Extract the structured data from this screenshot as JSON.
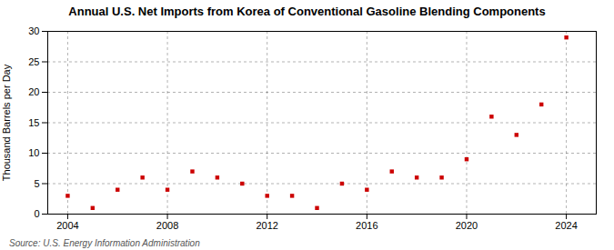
{
  "chart_data": {
    "type": "scatter",
    "title": "Annual U.S. Net Imports from Korea of Conventional Gasoline Blending Components",
    "ylabel": "Thousand Barrels per Day",
    "source": "Source: U.S. Energy Information Administration",
    "x": [
      2004,
      2005,
      2006,
      2007,
      2008,
      2009,
      2010,
      2011,
      2012,
      2013,
      2014,
      2015,
      2016,
      2017,
      2018,
      2019,
      2020,
      2021,
      2022,
      2023,
      2024
    ],
    "values": [
      3.0,
      1.0,
      4.0,
      6.0,
      4.0,
      7.0,
      6.0,
      5.0,
      3.0,
      3.0,
      1.0,
      5.0,
      4.0,
      7.0,
      6.0,
      6.0,
      9.0,
      16.0,
      13.0,
      18.0,
      29.0
    ],
    "color": "#cc0000",
    "marker": "square",
    "xlim": [
      2003.2,
      2025.2
    ],
    "xticks": [
      2004,
      2008,
      2012,
      2016,
      2020,
      2024
    ],
    "ylim": [
      0,
      30
    ],
    "yticks": [
      0,
      5,
      10,
      15,
      20,
      25,
      30
    ],
    "grid": true
  }
}
